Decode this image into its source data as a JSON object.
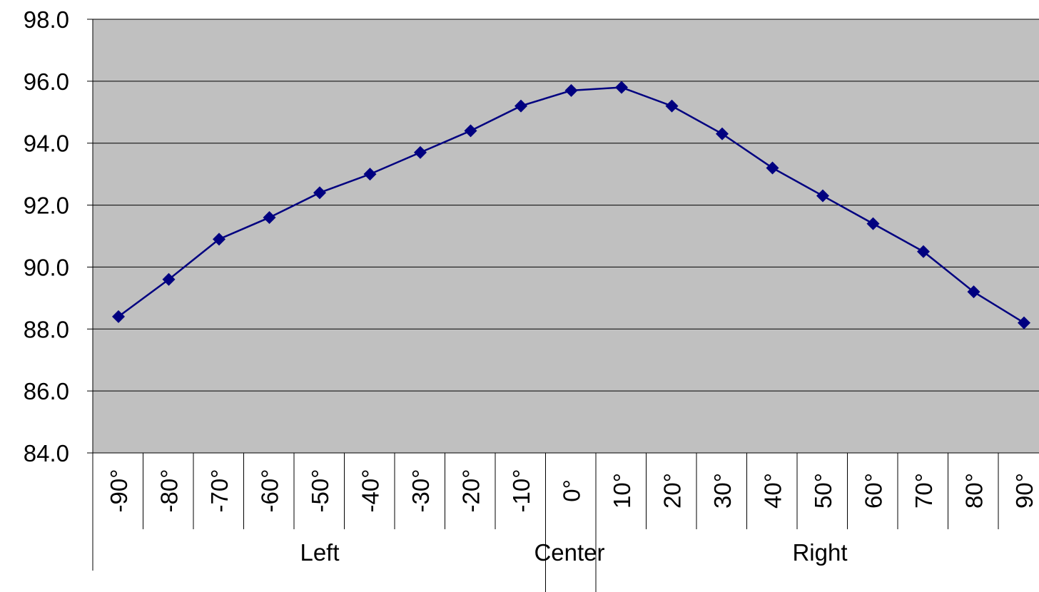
{
  "chart_data": {
    "type": "line",
    "title": "",
    "xlabel": "",
    "ylabel": "",
    "ylim": [
      84.0,
      98.0
    ],
    "yticks": [
      "84.0",
      "86.0",
      "88.0",
      "90.0",
      "92.0",
      "94.0",
      "96.0",
      "98.0"
    ],
    "grid": true,
    "legend": "none",
    "categories": [
      "-90°",
      "-80°",
      "-70°",
      "-60°",
      "-50°",
      "-40°",
      "-30°",
      "-20°",
      "-10°",
      "0°",
      "10°",
      "20°",
      "30°",
      "40°",
      "50°",
      "60°",
      "70°",
      "80°",
      "90°"
    ],
    "category_groups": [
      {
        "label": "Left",
        "start": 0,
        "end": 8
      },
      {
        "label": "Center",
        "start": 9,
        "end": 9
      },
      {
        "label": "Right",
        "start": 10,
        "end": 18
      }
    ],
    "series": [
      {
        "values": [
          88.4,
          89.6,
          90.9,
          91.6,
          92.4,
          93.0,
          93.7,
          94.4,
          95.2,
          95.7,
          95.8,
          95.2,
          94.3,
          93.2,
          92.3,
          91.4,
          90.5,
          89.2,
          88.2
        ]
      }
    ],
    "colors": {
      "plot_background": "#c0c0c0",
      "series_line": "#000080",
      "gridline": "#000000"
    },
    "marker": "diamond"
  }
}
